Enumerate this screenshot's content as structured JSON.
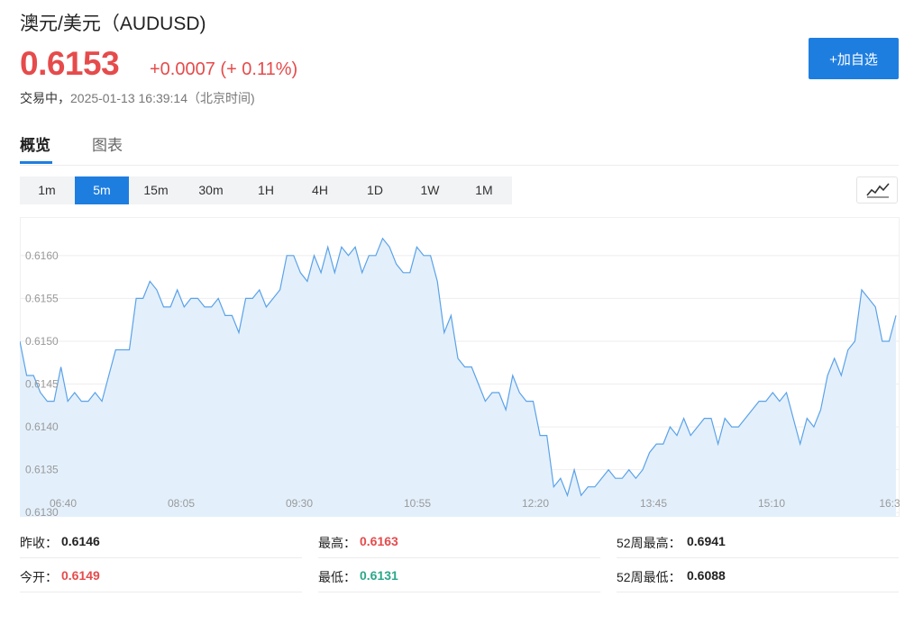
{
  "header": {
    "title": "澳元/美元（AUDUSD)",
    "price": "0.6153",
    "change": "+0.0007 (+ 0.11%)",
    "status": "交易中，",
    "timestamp": "2025-01-13 16:39:14（北京时间)",
    "add_button": "+加自选"
  },
  "tabs": [
    {
      "label": "概览",
      "active": true
    },
    {
      "label": "图表",
      "active": false
    }
  ],
  "periods": [
    {
      "label": "1m",
      "active": false
    },
    {
      "label": "5m",
      "active": true
    },
    {
      "label": "15m",
      "active": false
    },
    {
      "label": "30m",
      "active": false
    },
    {
      "label": "1H",
      "active": false
    },
    {
      "label": "4H",
      "active": false
    },
    {
      "label": "1D",
      "active": false
    },
    {
      "label": "1W",
      "active": false
    },
    {
      "label": "1M",
      "active": false
    }
  ],
  "chart_type_icon": "line-chart-icon",
  "colors": {
    "accent": "#1e7ee0",
    "up": "#e64b4b",
    "down": "#2aa88a",
    "line": "#5ba2e8",
    "area": "#e3f0fc"
  },
  "chart_data": {
    "type": "area",
    "x_ticks": [
      "06:40",
      "08:05",
      "09:30",
      "10:55",
      "12:20",
      "13:45",
      "15:10",
      "16:3"
    ],
    "y_ticks": [
      "0.6160",
      "0.6155",
      "0.6150",
      "0.6145",
      "0.6140",
      "0.6135",
      "0.6130"
    ],
    "ylim": [
      0.61295,
      0.61645
    ],
    "grid": true,
    "values": [
      0.615,
      0.6146,
      0.6146,
      0.6144,
      0.6143,
      0.6143,
      0.6147,
      0.6143,
      0.6144,
      0.6143,
      0.6143,
      0.6144,
      0.6143,
      0.6146,
      0.6149,
      0.6149,
      0.6149,
      0.6155,
      0.6155,
      0.6157,
      0.6156,
      0.6154,
      0.6154,
      0.6156,
      0.6154,
      0.6155,
      0.6155,
      0.6154,
      0.6154,
      0.6155,
      0.6153,
      0.6153,
      0.6151,
      0.6155,
      0.6155,
      0.6156,
      0.6154,
      0.6155,
      0.6156,
      0.616,
      0.616,
      0.6158,
      0.6157,
      0.616,
      0.6158,
      0.6161,
      0.6158,
      0.6161,
      0.616,
      0.6161,
      0.6158,
      0.616,
      0.616,
      0.6162,
      0.6161,
      0.6159,
      0.6158,
      0.6158,
      0.6161,
      0.616,
      0.616,
      0.6157,
      0.6151,
      0.6153,
      0.6148,
      0.6147,
      0.6147,
      0.6145,
      0.6143,
      0.6144,
      0.6144,
      0.6142,
      0.6146,
      0.6144,
      0.6143,
      0.6143,
      0.6139,
      0.6139,
      0.6133,
      0.6134,
      0.6132,
      0.6135,
      0.6132,
      0.6133,
      0.6133,
      0.6134,
      0.6135,
      0.6134,
      0.6134,
      0.6135,
      0.6134,
      0.6135,
      0.6137,
      0.6138,
      0.6138,
      0.614,
      0.6139,
      0.6141,
      0.6139,
      0.614,
      0.6141,
      0.6141,
      0.6138,
      0.6141,
      0.614,
      0.614,
      0.6141,
      0.6142,
      0.6143,
      0.6143,
      0.6144,
      0.6143,
      0.6144,
      0.6141,
      0.6138,
      0.6141,
      0.614,
      0.6142,
      0.6146,
      0.6148,
      0.6146,
      0.6149,
      0.615,
      0.6156,
      0.6155,
      0.6154,
      0.615,
      0.615,
      0.6153
    ]
  },
  "stats": [
    {
      "label": "昨收：",
      "value": "0.6146",
      "color": "black"
    },
    {
      "label": "最高：",
      "value": "0.6163",
      "color": "red"
    },
    {
      "label": "52周最高：",
      "value": "0.6941",
      "color": "black"
    },
    {
      "label": "今开：",
      "value": "0.6149",
      "color": "red"
    },
    {
      "label": "最低：",
      "value": "0.6131",
      "color": "green"
    },
    {
      "label": "52周最低：",
      "value": "0.6088",
      "color": "black"
    }
  ]
}
